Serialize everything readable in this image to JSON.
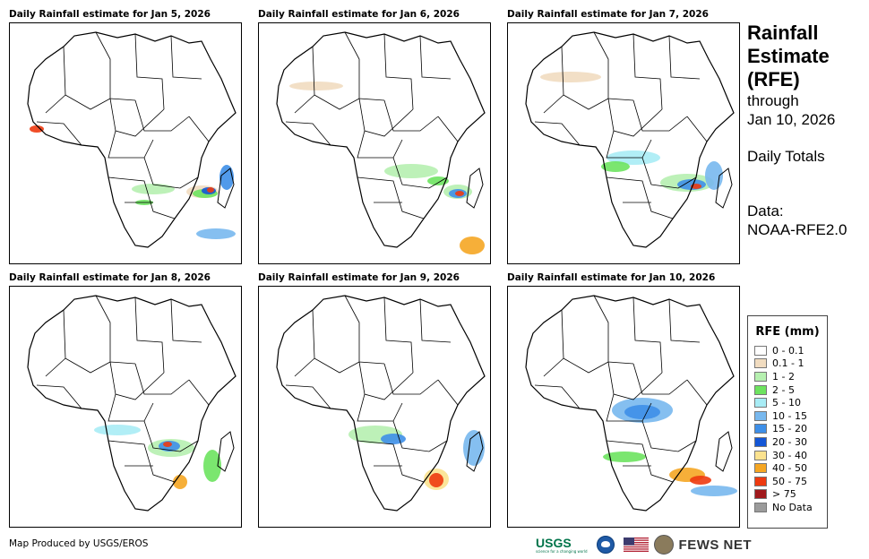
{
  "panels": [
    {
      "title": "Daily Rainfall estimate for Jan 5, 2026"
    },
    {
      "title": "Daily Rainfall estimate for Jan 6, 2026"
    },
    {
      "title": "Daily Rainfall estimate for Jan 7, 2026"
    },
    {
      "title": "Daily Rainfall estimate for Jan 8, 2026"
    },
    {
      "title": "Daily Rainfall estimate for Jan 9, 2026"
    },
    {
      "title": "Daily Rainfall estimate for Jan 10, 2026"
    }
  ],
  "side": {
    "title_lines": [
      "Rainfall",
      "Estimate",
      "(RFE)"
    ],
    "through": "through",
    "date": "Jan 10, 2026",
    "totals": "Daily Totals",
    "data_label": "Data:",
    "data_source": "NOAA-RFE2.0"
  },
  "legend": {
    "title": "RFE (mm)",
    "items": [
      {
        "label": "0 - 0.1",
        "color": "#ffffff"
      },
      {
        "label": "0.1 - 1",
        "color": "#f1dcc0"
      },
      {
        "label": "1 - 2",
        "color": "#b6f0b0"
      },
      {
        "label": "2 - 5",
        "color": "#6de35f"
      },
      {
        "label": "5 - 10",
        "color": "#a8ecf5"
      },
      {
        "label": "10 - 15",
        "color": "#78b8ee"
      },
      {
        "label": "15 - 20",
        "color": "#3e8fe8"
      },
      {
        "label": "20 - 30",
        "color": "#1456d6"
      },
      {
        "label": "30 - 40",
        "color": "#fbe28f"
      },
      {
        "label": "40 - 50",
        "color": "#f5a623"
      },
      {
        "label": "50 - 75",
        "color": "#ee3a10"
      },
      {
        "label": "> 75",
        "color": "#a0191c"
      },
      {
        "label": "No Data",
        "color": "#9b9b9b"
      }
    ]
  },
  "footer": {
    "credit": "Map Produced by USGS/EROS",
    "usgs": "USGS",
    "usgs_tagline": "science for a changing world",
    "fews": "FEWS NET"
  }
}
